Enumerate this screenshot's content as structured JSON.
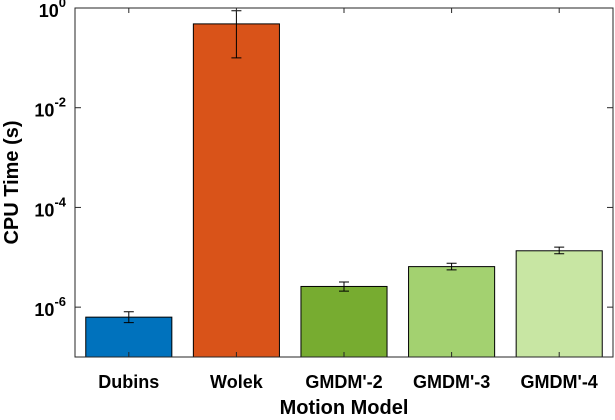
{
  "chart_data": {
    "type": "bar",
    "xlabel": "Motion Model",
    "ylabel": "CPU Time (s)",
    "yscale": "log",
    "ylim": [
      1e-07,
      1
    ],
    "y_ticks": [
      {
        "value": 1e-06,
        "base": "10",
        "exp": "-6"
      },
      {
        "value": 0.0001,
        "base": "10",
        "exp": "-4"
      },
      {
        "value": 0.01,
        "base": "10",
        "exp": "-2"
      },
      {
        "value": 1,
        "base": "10",
        "exp": "0"
      }
    ],
    "grid": false,
    "categories": [
      "Dubins",
      "Wolek",
      "GMDM'-2",
      "GMDM'-3",
      "GMDM'-4"
    ],
    "values": [
      6.3e-07,
      0.48,
      2.6e-06,
      6.5e-06,
      1.35e-05
    ],
    "error_low": [
      4.9e-07,
      0.1,
      2.1e-06,
      5.6e-06,
      1.18e-05
    ],
    "error_high": [
      8.1e-07,
      0.88,
      3.2e-06,
      7.6e-06,
      1.6e-05
    ],
    "colors": [
      "#0072BD",
      "#D95319",
      "#77AC30",
      "#A3D170",
      "#C8E6A3"
    ]
  }
}
